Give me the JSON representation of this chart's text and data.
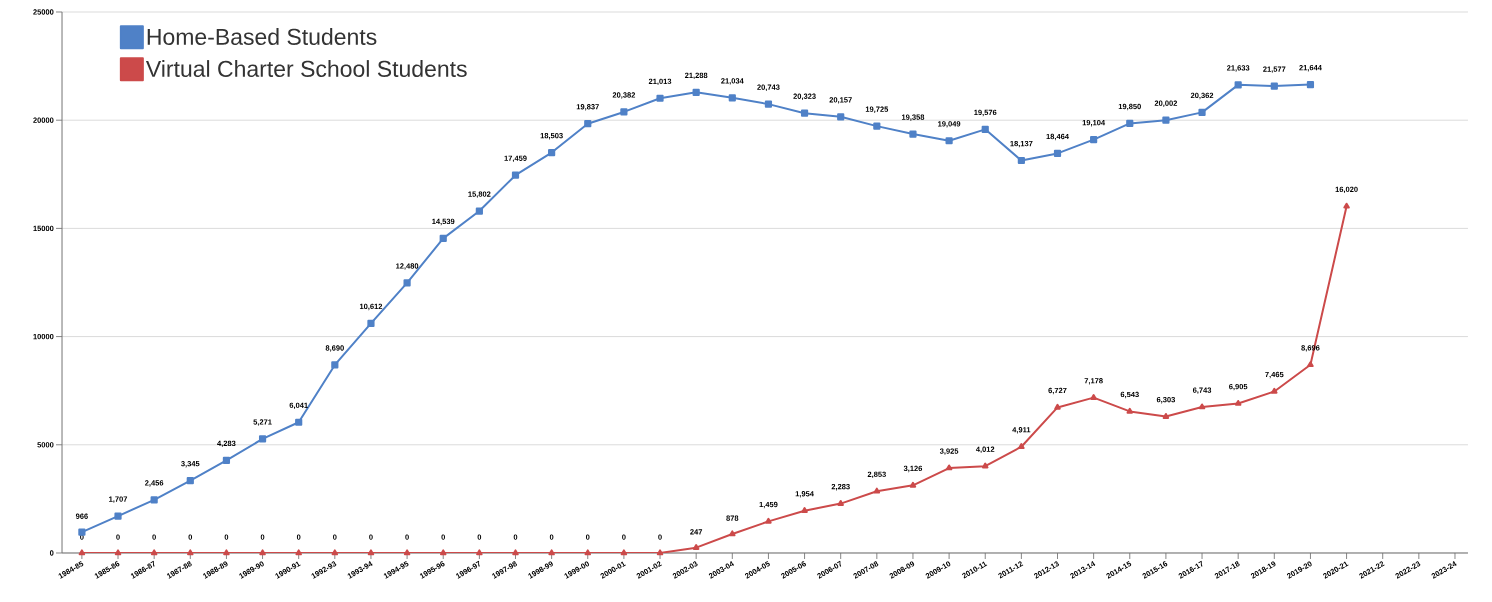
{
  "chart_data": {
    "type": "line",
    "categories": [
      "1984-85",
      "1985-86",
      "1986-87",
      "1987-88",
      "1988-89",
      "1989-90",
      "1990-91",
      "1992-93",
      "1993-94",
      "1994-95",
      "1995-96",
      "1996-97",
      "1997-98",
      "1998-99",
      "1999-00",
      "2000-01",
      "2001-02",
      "2002-03",
      "2003-04",
      "2004-05",
      "2005-06",
      "2006-07",
      "2007-08",
      "2008-09",
      "2009-10",
      "2010-11",
      "2011-12",
      "2012-13",
      "2013-14",
      "2014-15",
      "2015-16",
      "2016-17",
      "2017-18",
      "2018-19",
      "2019-20",
      "2020-21",
      "2021-22",
      "2022-23",
      "2023-24"
    ],
    "series": [
      {
        "name": "Home-Based Students",
        "color": "#4f81c7",
        "marker": "square",
        "values": [
          966,
          1707,
          2456,
          3345,
          4283,
          5271,
          6041,
          8690,
          10612,
          12480,
          14539,
          15802,
          17459,
          18503,
          19837,
          20382,
          21013,
          21288,
          21034,
          20743,
          20323,
          20157,
          19725,
          19358,
          19049,
          19576,
          18137,
          18464,
          19104,
          19850,
          20002,
          20362,
          21633,
          21577,
          21644,
          null,
          null,
          null,
          null
        ],
        "value_labels": [
          "966",
          "1,707",
          "2,456",
          "3,345",
          "4,283",
          "5,271",
          "6,041",
          "8,690",
          "10,612",
          "12,480",
          "14,539",
          "15,802",
          "17,459",
          "18,503",
          "19,837",
          "20,382",
          "21,013",
          "21,288",
          "21,034",
          "20,743",
          "20,323",
          "20,157",
          "19,725",
          "19,358",
          "19,049",
          "19,576",
          "18,137",
          "18,464",
          "19,104",
          "19,850",
          "20,002",
          "20,362",
          "21,633",
          "21,577",
          "21,644",
          null,
          null,
          null,
          null
        ]
      },
      {
        "name": "Virtual Charter School Students",
        "color": "#cc4a4a",
        "marker": "triangle",
        "values": [
          0,
          0,
          0,
          0,
          0,
          0,
          0,
          0,
          0,
          0,
          0,
          0,
          0,
          0,
          0,
          0,
          0,
          247,
          878,
          1459,
          1954,
          2283,
          2853,
          3126,
          3925,
          4012,
          4911,
          6727,
          7178,
          6543,
          6303,
          6743,
          6905,
          7465,
          8696,
          16020,
          null,
          null,
          null
        ],
        "value_labels": [
          "0",
          "0",
          "0",
          "0",
          "0",
          "0",
          "0",
          "0",
          "0",
          "0",
          "0",
          "0",
          "0",
          "0",
          "0",
          "0",
          "0",
          "247",
          "878",
          "1,459",
          "1,954",
          "2,283",
          "2,853",
          "3,126",
          "3,925",
          "4,012",
          "4,911",
          "6,727",
          "7,178",
          "6,543",
          "6,303",
          "6,743",
          "6,905",
          "7,465",
          "8,696",
          "16,020",
          null,
          null,
          null
        ]
      }
    ],
    "ylim": [
      0,
      25000
    ],
    "yticks": [
      0,
      5000,
      10000,
      15000,
      20000,
      25000
    ],
    "grid": "y",
    "legend": "top left"
  }
}
